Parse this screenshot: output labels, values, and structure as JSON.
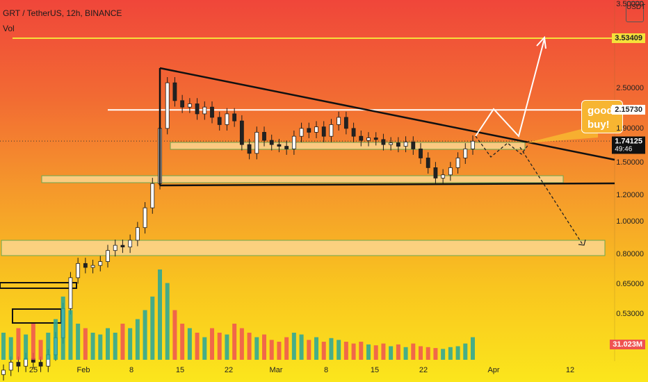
{
  "header": {
    "title": "GRT / TetherUS, 12h, BINANCE",
    "volume_label": "Vol"
  },
  "currency_badge": "USDT",
  "price_axis": {
    "labels": [
      "3.50000",
      "3.53409",
      "2.50000",
      "2.15730",
      "1.90000",
      "1.74125",
      "1.50000",
      "1.20000",
      "1.00000",
      "0.80000",
      "0.65000",
      "0.53000",
      "31.023M"
    ],
    "current_price": "1.74125",
    "countdown": "49:46",
    "target_price": "3.53409",
    "resistance_price": "2.15730",
    "volume_value": "31.023M"
  },
  "time_axis": {
    "labels": [
      "25",
      "Feb",
      "8",
      "15",
      "22",
      "Mar",
      "8",
      "15",
      "22",
      "Apr",
      "12"
    ]
  },
  "annotation": {
    "text_line1": "good f",
    "text_line2": "buy!"
  },
  "colors": {
    "up": "#26a69a",
    "down": "#ef5350",
    "target_line": "#f5e13a",
    "resistance_line": "#ffffff",
    "support_box": "#fbd68f"
  },
  "chart_data": {
    "type": "candlestick",
    "symbol": "GRT / TetherUS",
    "interval": "12h",
    "exchange": "BINANCE",
    "y_scale": "log",
    "levels": {
      "target": 3.53409,
      "resistance": 2.1573,
      "last": 1.74125
    },
    "close_series_approx": [
      0.36,
      0.38,
      0.37,
      0.39,
      0.38,
      0.37,
      0.4,
      0.45,
      0.55,
      0.68,
      0.75,
      0.73,
      0.74,
      0.76,
      0.82,
      0.85,
      0.84,
      0.88,
      0.96,
      1.1,
      1.3,
      1.9,
      2.6,
      2.3,
      2.2,
      2.25,
      2.1,
      2.2,
      2.05,
      1.95,
      2.1,
      2.0,
      1.7,
      1.6,
      1.85,
      1.75,
      1.7,
      1.68,
      1.65,
      1.8,
      1.9,
      1.85,
      1.92,
      1.8,
      1.95,
      2.05,
      1.9,
      1.8,
      1.75,
      1.78,
      1.76,
      1.7,
      1.72,
      1.68,
      1.73,
      1.65,
      1.55,
      1.45,
      1.35,
      1.38,
      1.45,
      1.55,
      1.65,
      1.74
    ],
    "volume_series_approx": [
      0.3,
      0.25,
      0.35,
      0.28,
      0.4,
      0.22,
      0.3,
      0.45,
      0.7,
      0.55,
      0.4,
      0.35,
      0.3,
      0.28,
      0.35,
      0.3,
      0.4,
      0.35,
      0.45,
      0.55,
      0.7,
      1.0,
      0.85,
      0.55,
      0.4,
      0.35,
      0.3,
      0.25,
      0.35,
      0.3,
      0.28,
      0.4,
      0.35,
      0.3,
      0.25,
      0.28,
      0.22,
      0.2,
      0.25,
      0.3,
      0.28,
      0.22,
      0.25,
      0.2,
      0.24,
      0.22,
      0.2,
      0.18,
      0.2,
      0.17,
      0.16,
      0.18,
      0.15,
      0.17,
      0.14,
      0.18,
      0.15,
      0.14,
      0.13,
      0.12,
      0.14,
      0.15,
      0.18,
      0.25
    ]
  }
}
